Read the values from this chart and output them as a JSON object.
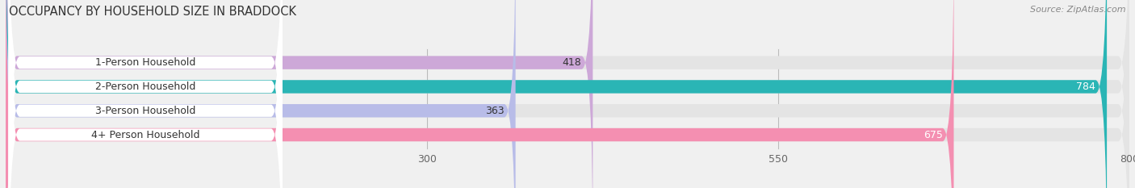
{
  "title": "OCCUPANCY BY HOUSEHOLD SIZE IN BRADDOCK",
  "source": "Source: ZipAtlas.com",
  "categories": [
    "1-Person Household",
    "2-Person Household",
    "3-Person Household",
    "4+ Person Household"
  ],
  "values": [
    418,
    784,
    363,
    675
  ],
  "bar_colors": [
    "#cda8d8",
    "#2ab5b5",
    "#b8bce8",
    "#f48fb1"
  ],
  "label_colors": [
    "#333333",
    "#ffffff",
    "#333333",
    "#ffffff"
  ],
  "xlim_data": [
    0,
    800
  ],
  "xticks": [
    300,
    550,
    800
  ],
  "background_color": "#f0f0f0",
  "bar_bg_color": "#e4e4e4",
  "title_fontsize": 10.5,
  "source_fontsize": 8,
  "tick_fontsize": 9,
  "label_fontsize": 9,
  "value_fontsize": 9
}
